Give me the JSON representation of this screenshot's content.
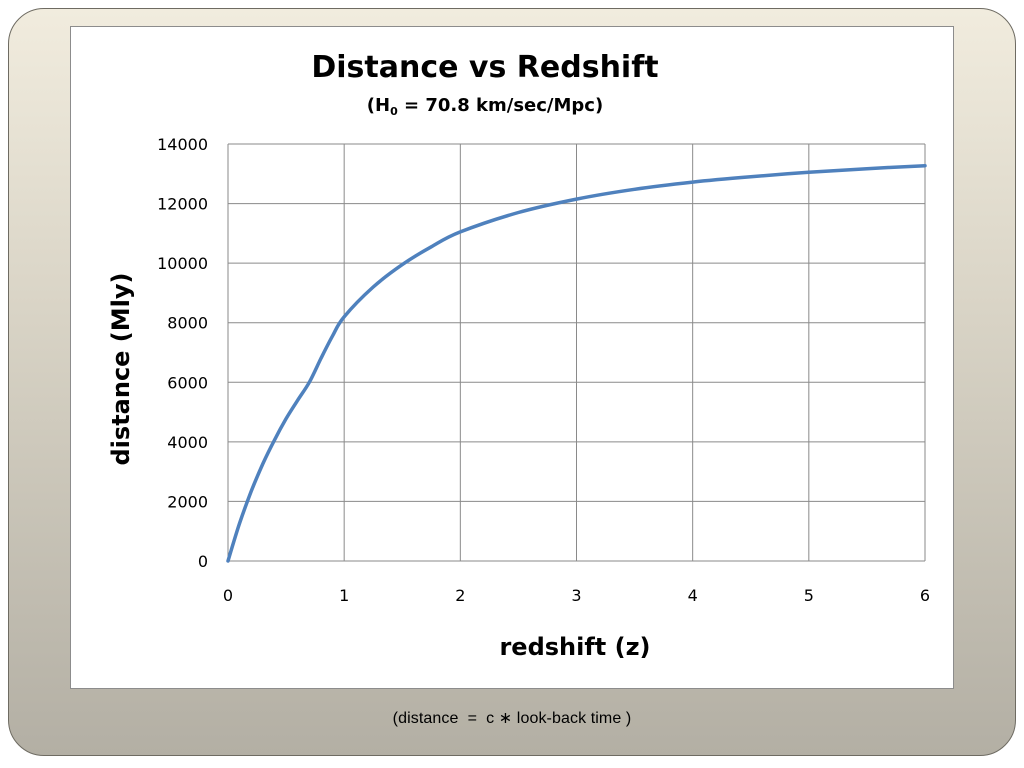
{
  "chart_data": {
    "type": "line",
    "title": "Distance vs Redshift",
    "subtitle": {
      "prefix": "(H",
      "subscript": "0",
      "suffix": " = 70.8 km/sec/Mpc)"
    },
    "xlabel": "redshift (z)",
    "ylabel": "distance (Mly)",
    "xlim": [
      0,
      6
    ],
    "ylim": [
      0,
      14000
    ],
    "xticks": [
      "0",
      "1",
      "2",
      "3",
      "4",
      "5",
      "6"
    ],
    "yticks": [
      "0",
      "2000",
      "4000",
      "6000",
      "8000",
      "10000",
      "12000",
      "14000"
    ],
    "grid": true,
    "legend": "none",
    "line_color": "#4f81bd",
    "series": [
      {
        "x": [
          0,
          0.1,
          0.2,
          0.3,
          0.4,
          0.5,
          0.6,
          0.7,
          0.8,
          0.9,
          1.0,
          1.25,
          1.5,
          1.75,
          2.0,
          2.5,
          3.0,
          3.5,
          4.0,
          4.5,
          5.0,
          5.5,
          6.0
        ],
        "y": [
          0,
          1270,
          2340,
          3260,
          4060,
          4780,
          5400,
          6000,
          6800,
          7560,
          8200,
          9200,
          9950,
          10550,
          11050,
          11700,
          12150,
          12480,
          12720,
          12900,
          13050,
          13170,
          13270
        ]
      }
    ]
  },
  "caption": {
    "text": "(distance  =  c ∗ look-back time )"
  }
}
